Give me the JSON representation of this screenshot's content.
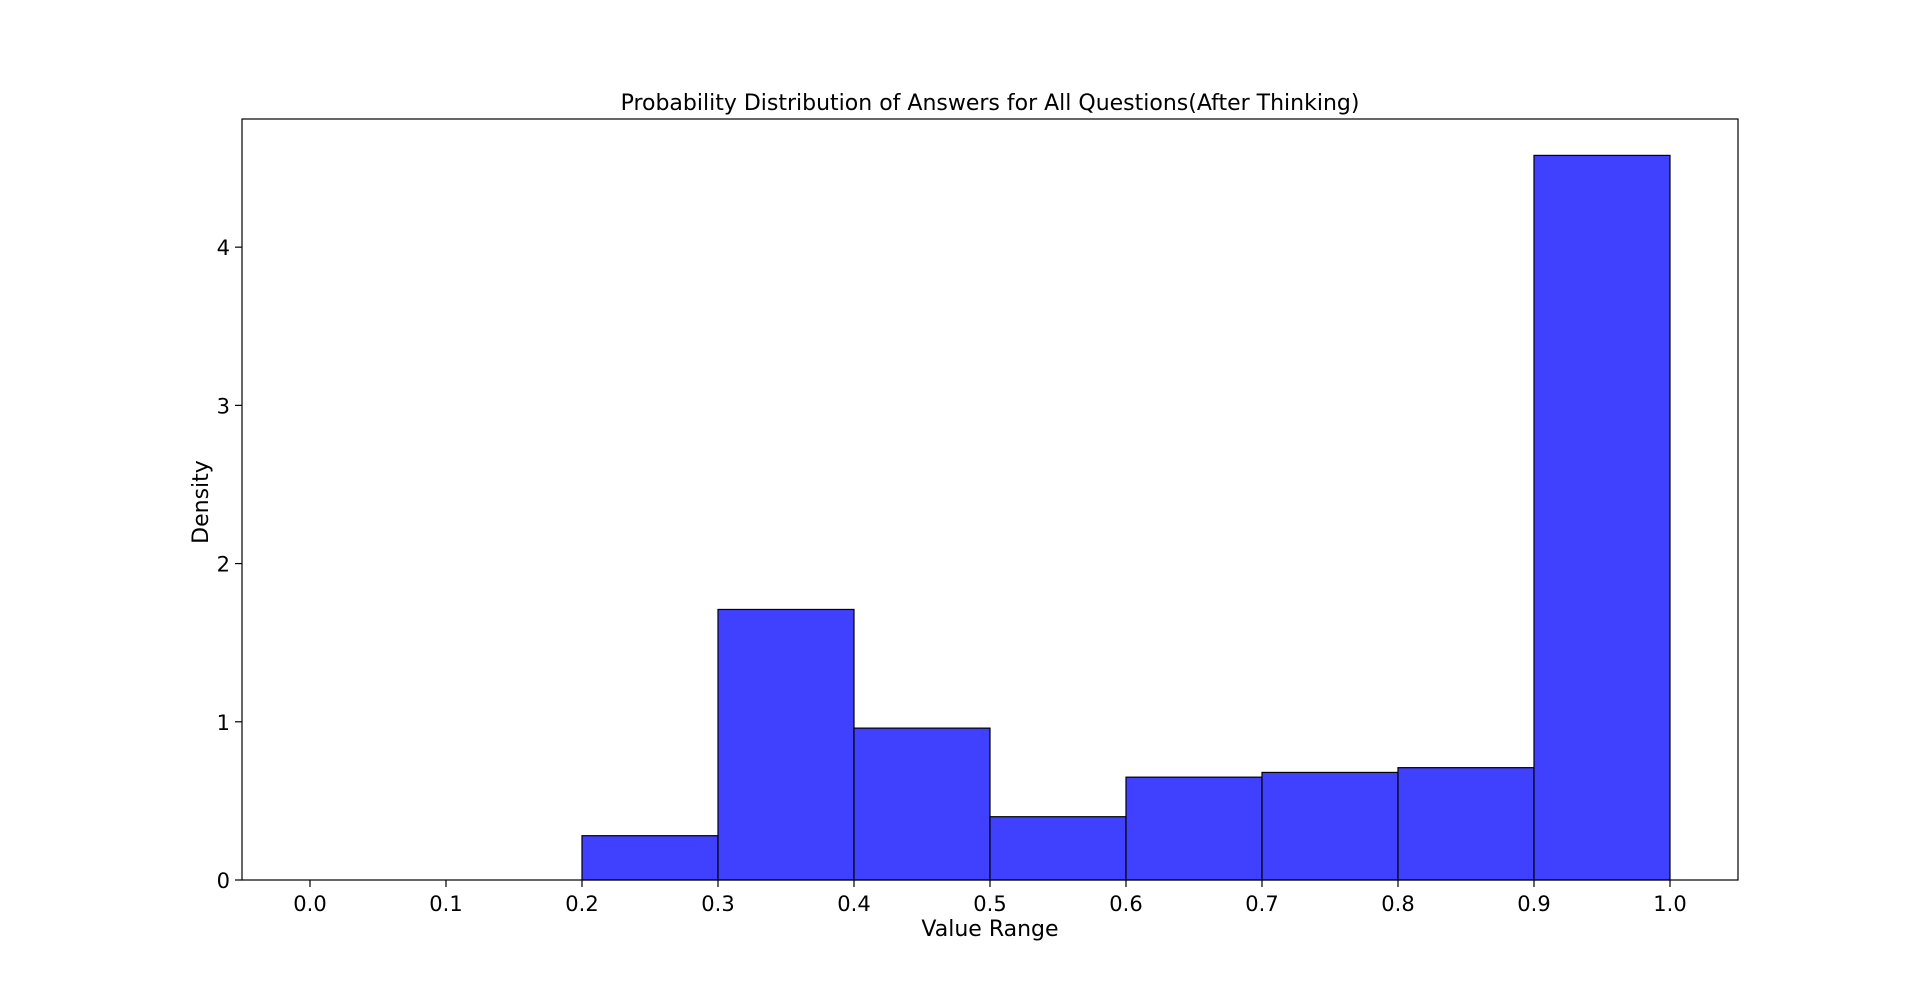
{
  "chart_data": {
    "type": "bar",
    "subtype": "histogram",
    "title": "Probability Distribution of Answers for All Questions(After Thinking)",
    "xlabel": "Value Range",
    "ylabel": "Density",
    "xlim": [
      -0.05,
      1.05
    ],
    "ylim": [
      0,
      4.81
    ],
    "bin_edges": [
      0.0,
      0.1,
      0.2,
      0.3,
      0.4,
      0.5,
      0.6,
      0.7,
      0.8,
      0.9,
      1.0
    ],
    "values": [
      0.0,
      0.0,
      0.28,
      1.71,
      0.96,
      0.4,
      0.65,
      0.68,
      0.71,
      4.58
    ],
    "x_ticks": [
      "0.0",
      "0.1",
      "0.2",
      "0.3",
      "0.4",
      "0.5",
      "0.6",
      "0.7",
      "0.8",
      "0.9",
      "1.0"
    ],
    "x_tick_values": [
      0.0,
      0.1,
      0.2,
      0.3,
      0.4,
      0.5,
      0.6,
      0.7,
      0.8,
      0.9,
      1.0
    ],
    "y_ticks": [
      "0",
      "1",
      "2",
      "3",
      "4"
    ],
    "y_tick_values": [
      0,
      1,
      2,
      3,
      4
    ],
    "grid": false,
    "legend": "none",
    "bar_color": "#4040ff",
    "edge_color": "#000000"
  }
}
